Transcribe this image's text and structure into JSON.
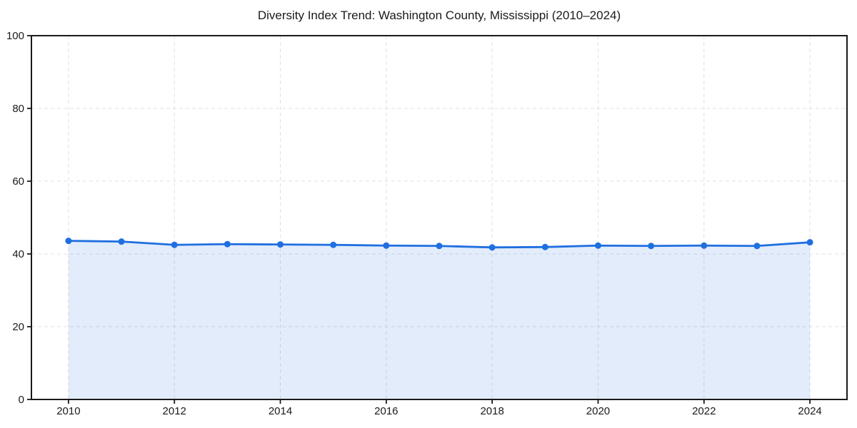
{
  "page": {
    "background": "#ffffff"
  },
  "chart_data": {
    "type": "area",
    "title": "Diversity Index Trend: Washington County, Mississippi (2010–2024)",
    "xlabel": "",
    "ylabel": "",
    "x": [
      2010,
      2011,
      2012,
      2013,
      2014,
      2015,
      2016,
      2017,
      2018,
      2019,
      2020,
      2021,
      2022,
      2023,
      2024
    ],
    "series": [
      {
        "name": "Diversity Index",
        "values": [
          43.6,
          43.4,
          42.5,
          42.7,
          42.6,
          42.5,
          42.3,
          42.2,
          41.8,
          41.9,
          42.3,
          42.2,
          42.3,
          42.2,
          43.2
        ]
      }
    ],
    "xlim": [
      2009.3,
      2024.7
    ],
    "ylim": [
      0,
      100
    ],
    "xticks": [
      2010,
      2012,
      2014,
      2016,
      2018,
      2020,
      2022,
      2024
    ],
    "yticks": [
      0,
      20,
      40,
      60,
      80,
      100
    ],
    "grid": true,
    "grid_style": "dashed",
    "legend": false,
    "marker": "circle",
    "colors": {
      "line": "#1f6fe0",
      "fill_opacity": 0.13,
      "grid": "#e0e0e0",
      "spine": "#1a1a1a",
      "text": "#1a1a1a",
      "background": "#ffffff"
    }
  }
}
